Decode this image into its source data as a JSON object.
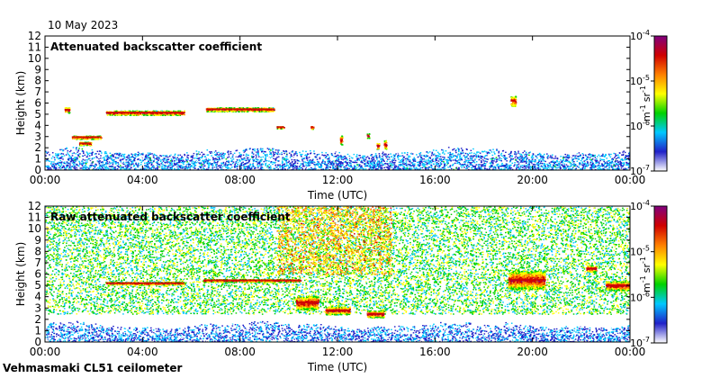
{
  "date_label": "10 May 2023",
  "footer_label": "Vehmasmaki CL51 ceilometer",
  "colors": {
    "colormap": [
      "#ffffff",
      "#2020c8",
      "#00c8ff",
      "#00d200",
      "#ffff00",
      "#ff8000",
      "#d00000",
      "#800080"
    ],
    "frame": "#000000",
    "background": "#ffffff"
  },
  "chart_data": [
    {
      "type": "heatmap",
      "title": "Attenuated backscatter coefficient",
      "xlabel": "Time (UTC)",
      "ylabel": "Height (km)",
      "xlim": [
        0,
        24
      ],
      "ylim": [
        0,
        12
      ],
      "x_ticks": [
        0,
        4,
        8,
        12,
        16,
        20,
        24
      ],
      "x_tick_labels": [
        "00:00",
        "04:00",
        "08:00",
        "12:00",
        "16:00",
        "20:00",
        "00:00"
      ],
      "y_ticks": [
        0,
        1,
        2,
        3,
        4,
        5,
        6,
        7,
        8,
        9,
        10,
        11,
        12
      ],
      "y_tick_labels": [
        "0",
        "1",
        "2",
        "3",
        "4",
        "5",
        "6",
        "7",
        "8",
        "9",
        "10",
        "11",
        "12"
      ],
      "colorbar": {
        "label_base": "m",
        "label_exp1": "-1",
        "label_mid": "sr",
        "label_exp2": "-1",
        "scale": "log",
        "range": [
          1e-07,
          0.0001
        ],
        "ticks": [
          {
            "value": 1e-07,
            "base": "10",
            "exp": "-7"
          },
          {
            "value": 1e-06,
            "base": "10",
            "exp": "-6"
          },
          {
            "value": 1e-05,
            "base": "10",
            "exp": "-5"
          },
          {
            "value": 0.0001,
            "base": "10",
            "exp": "-4"
          }
        ]
      },
      "features": [
        {
          "kind": "boundary_layer",
          "t_start": 0,
          "t_end": 24,
          "h_top": 1.8,
          "level": 1.2
        },
        {
          "kind": "cloud_layer",
          "t_start": 0.8,
          "t_end": 1.0,
          "h": 5.4,
          "thickness": 0.5
        },
        {
          "kind": "cloud_layer",
          "t_start": 1.1,
          "t_end": 2.3,
          "h": 2.95,
          "thickness": 0.3
        },
        {
          "kind": "cloud_layer",
          "t_start": 1.4,
          "t_end": 1.9,
          "h": 2.4,
          "thickness": 0.3
        },
        {
          "kind": "cloud_layer",
          "t_start": 2.5,
          "t_end": 5.7,
          "h": 5.15,
          "thickness": 0.4
        },
        {
          "kind": "cloud_layer",
          "t_start": 6.6,
          "t_end": 9.4,
          "h": 5.45,
          "thickness": 0.35
        },
        {
          "kind": "cloud_layer",
          "t_start": 9.5,
          "t_end": 9.8,
          "h": 3.85,
          "thickness": 0.2
        },
        {
          "kind": "cloud_layer",
          "t_start": 10.9,
          "t_end": 11.0,
          "h": 3.85,
          "thickness": 0.3
        },
        {
          "kind": "cloud_layer",
          "t_start": 12.1,
          "t_end": 12.2,
          "h": 2.7,
          "thickness": 0.8
        },
        {
          "kind": "cloud_layer",
          "t_start": 13.2,
          "t_end": 13.3,
          "h": 3.1,
          "thickness": 0.4
        },
        {
          "kind": "cloud_layer",
          "t_start": 13.6,
          "t_end": 13.7,
          "h": 2.2,
          "thickness": 0.6
        },
        {
          "kind": "cloud_layer",
          "t_start": 13.9,
          "t_end": 14.0,
          "h": 2.3,
          "thickness": 0.8
        },
        {
          "kind": "cloud_layer",
          "t_start": 19.1,
          "t_end": 19.3,
          "h": 6.2,
          "thickness": 0.9
        }
      ]
    },
    {
      "type": "heatmap",
      "title": "Raw attenuated backscatter coefficient",
      "xlabel": "Time (UTC)",
      "ylabel": "Height (km)",
      "xlim": [
        0,
        24
      ],
      "ylim": [
        0,
        12
      ],
      "x_ticks": [
        0,
        4,
        8,
        12,
        16,
        20,
        24
      ],
      "x_tick_labels": [
        "00:00",
        "04:00",
        "08:00",
        "12:00",
        "16:00",
        "20:00",
        "00:00"
      ],
      "y_ticks": [
        0,
        1,
        2,
        3,
        4,
        5,
        6,
        7,
        8,
        9,
        10,
        11,
        12
      ],
      "y_tick_labels": [
        "0",
        "1",
        "2",
        "3",
        "4",
        "5",
        "6",
        "7",
        "8",
        "9",
        "10",
        "11",
        "12"
      ],
      "colorbar": {
        "label_base": "m",
        "label_exp1": "-1",
        "label_mid": "sr",
        "label_exp2": "-1",
        "scale": "log",
        "range": [
          1e-07,
          0.0001
        ],
        "ticks": [
          {
            "value": 1e-07,
            "base": "10",
            "exp": "-7"
          },
          {
            "value": 1e-06,
            "base": "10",
            "exp": "-6"
          },
          {
            "value": 1e-05,
            "base": "10",
            "exp": "-5"
          },
          {
            "value": 0.0001,
            "base": "10",
            "exp": "-4"
          }
        ]
      },
      "features": [
        {
          "kind": "noise_field",
          "t_start": 0,
          "t_end": 24,
          "h_bottom": 2.5,
          "h_top": 12,
          "level": 2.8
        },
        {
          "kind": "noise_field",
          "t_start": 9.5,
          "t_end": 14.2,
          "h_bottom": 6,
          "h_top": 12,
          "level": 4.3
        },
        {
          "kind": "boundary_layer",
          "t_start": 0,
          "t_end": 24,
          "h_top": 1.6,
          "level": 1.0
        },
        {
          "kind": "cloud_layer",
          "t_start": 2.5,
          "t_end": 5.7,
          "h": 5.2,
          "thickness": 0.25
        },
        {
          "kind": "cloud_layer",
          "t_start": 6.5,
          "t_end": 10.5,
          "h": 5.45,
          "thickness": 0.25
        },
        {
          "kind": "cloud_layer",
          "t_start": 10.3,
          "t_end": 11.2,
          "h": 3.5,
          "thickness": 1.2
        },
        {
          "kind": "cloud_layer",
          "t_start": 11.5,
          "t_end": 12.5,
          "h": 2.8,
          "thickness": 0.7
        },
        {
          "kind": "cloud_layer",
          "t_start": 13.2,
          "t_end": 13.9,
          "h": 2.5,
          "thickness": 0.6
        },
        {
          "kind": "cloud_layer",
          "t_start": 19.0,
          "t_end": 20.5,
          "h": 5.5,
          "thickness": 1.6
        },
        {
          "kind": "cloud_layer",
          "t_start": 22.2,
          "t_end": 22.6,
          "h": 6.5,
          "thickness": 0.6
        },
        {
          "kind": "cloud_layer",
          "t_start": 23.0,
          "t_end": 24.0,
          "h": 5.0,
          "thickness": 0.8
        }
      ]
    }
  ]
}
